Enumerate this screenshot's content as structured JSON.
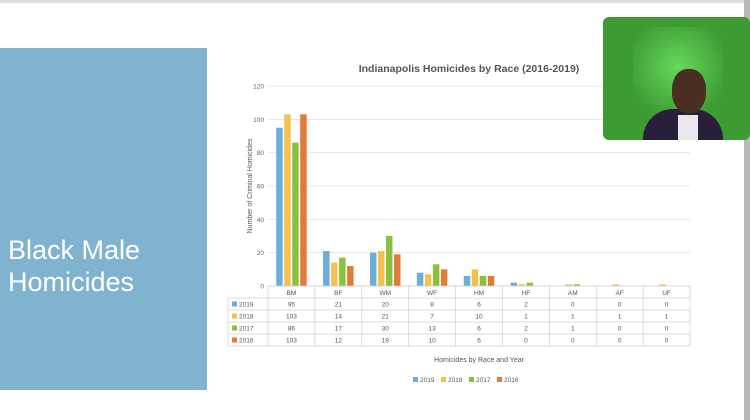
{
  "slide": {
    "title": "Black Male Homicides"
  },
  "chart_data": {
    "type": "bar",
    "title": "Indianapolis Homicides by Race (2016-2019)",
    "xlabel": "Homicides by Race and Year",
    "ylabel": "Number of Criminal Homicides",
    "ylim": [
      0,
      120
    ],
    "yticks": [
      0,
      20,
      40,
      60,
      80,
      100,
      120
    ],
    "grid": true,
    "legend_position": "bottom",
    "categories": [
      "BM",
      "BF",
      "WM",
      "WF",
      "HM",
      "HF",
      "AM",
      "AF",
      "UF"
    ],
    "series": [
      {
        "name": "2019",
        "color": "#6baed6",
        "values": [
          95,
          21,
          20,
          8,
          6,
          2,
          0,
          0,
          0
        ]
      },
      {
        "name": "2018",
        "color": "#f2c14e",
        "values": [
          103,
          14,
          21,
          7,
          10,
          1,
          1,
          1,
          1
        ]
      },
      {
        "name": "2017",
        "color": "#8bbf3f",
        "values": [
          86,
          17,
          30,
          13,
          6,
          2,
          1,
          0,
          0
        ]
      },
      {
        "name": "2016",
        "color": "#e07b39",
        "values": [
          103,
          12,
          19,
          10,
          6,
          0,
          0,
          0,
          0
        ]
      }
    ]
  },
  "webcam": {
    "icon": "person-video-icon"
  }
}
